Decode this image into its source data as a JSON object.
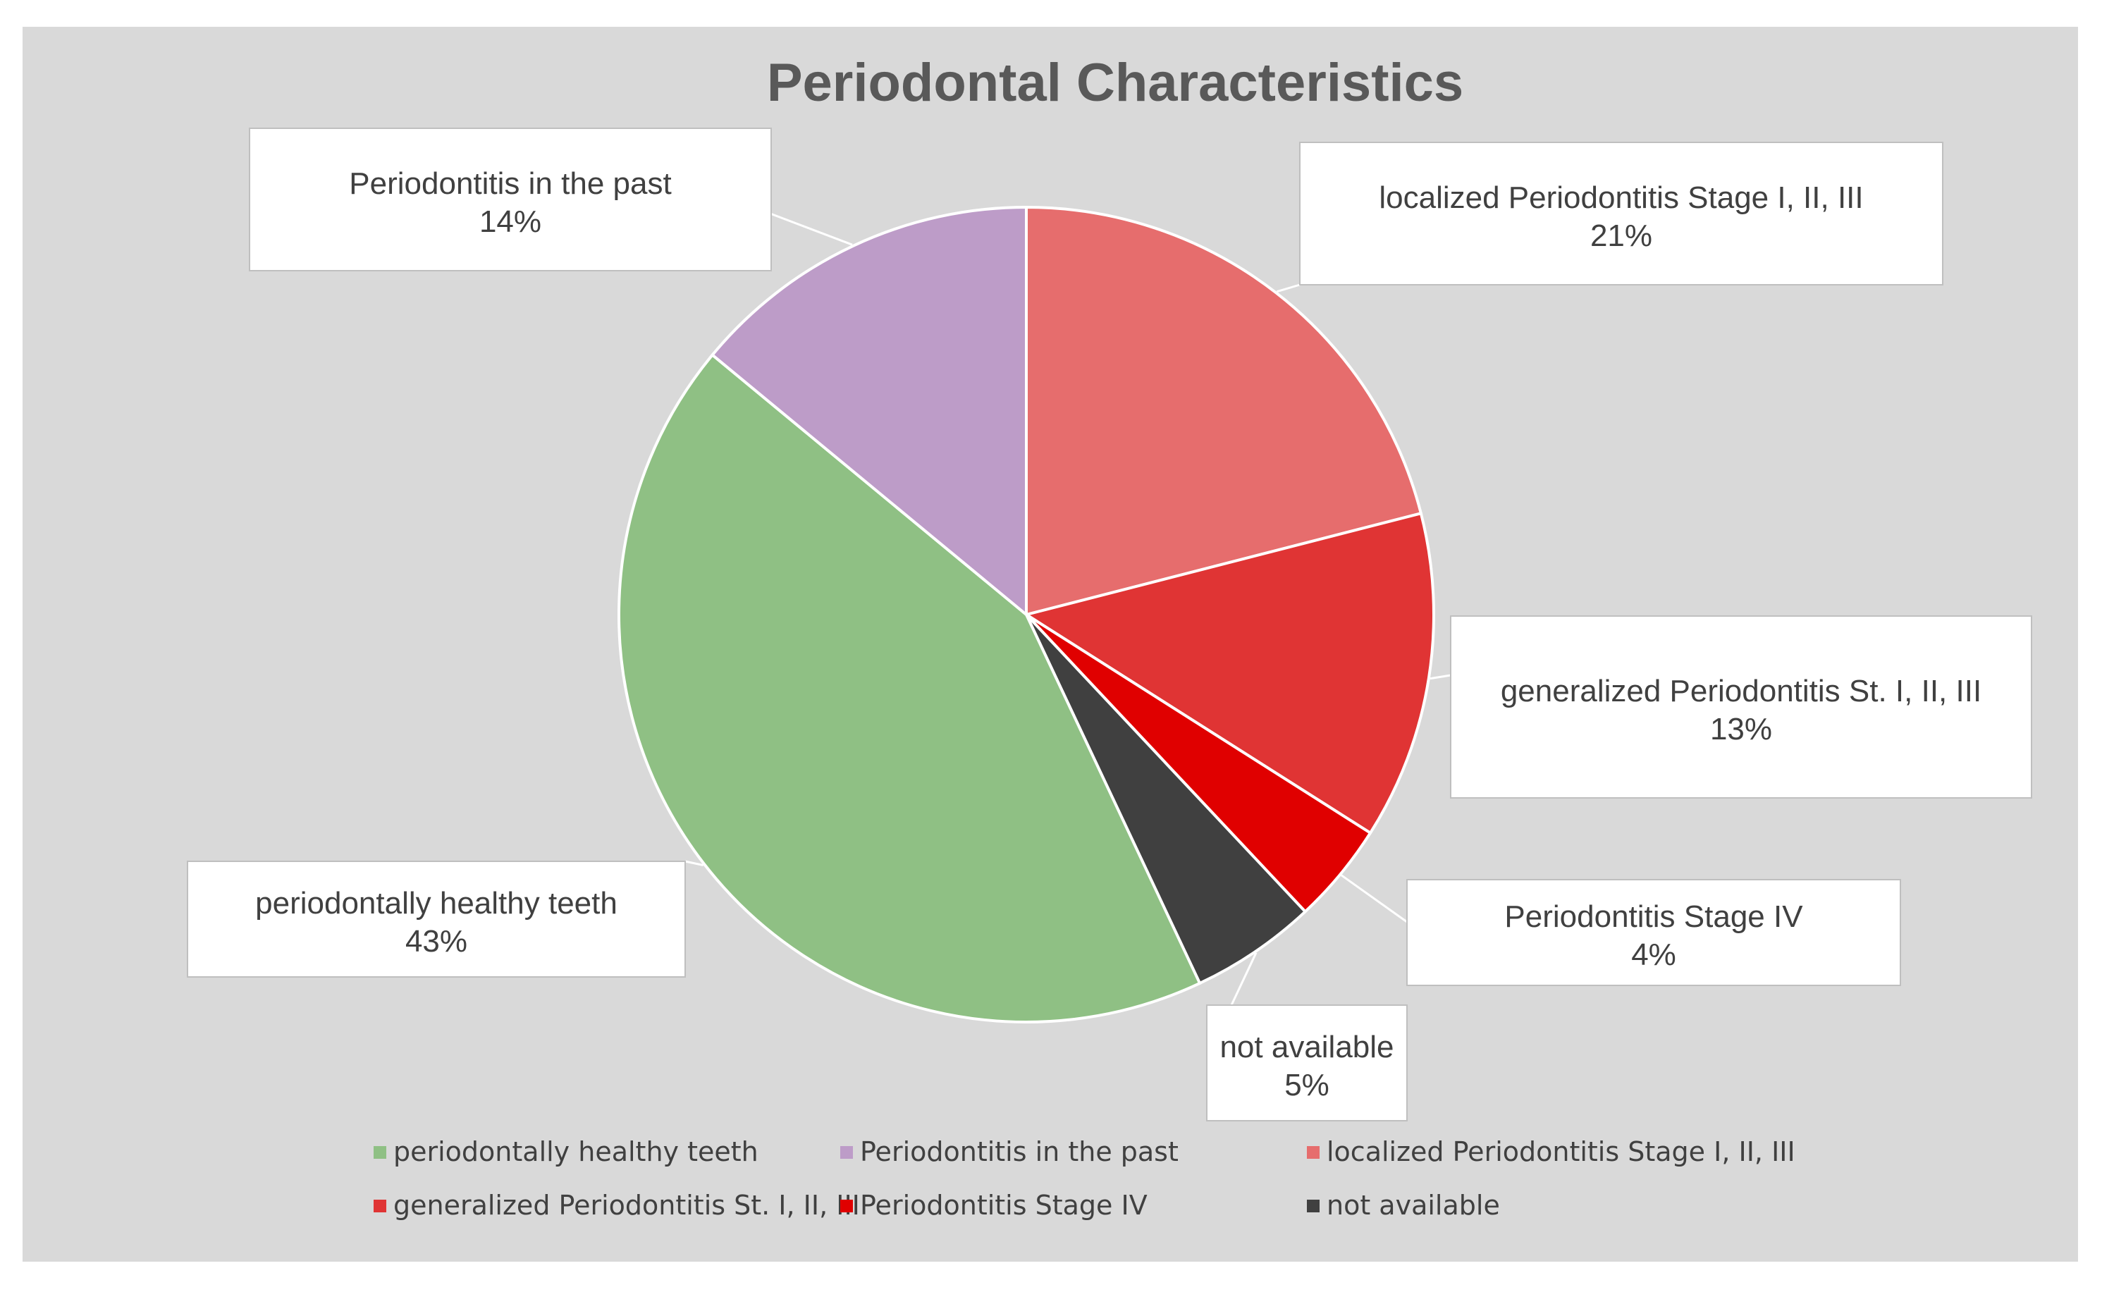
{
  "chart_data": {
    "type": "pie",
    "title": "Periodontal Characteristics",
    "slices": [
      {
        "label": "periodontally healthy teeth",
        "value": 43,
        "value_label": "43%",
        "color": "#8fc084"
      },
      {
        "label": "Periodontitis in the past",
        "value": 14,
        "value_label": "14%",
        "color": "#bd9cc8"
      },
      {
        "label": "localized Periodontitis Stage I, II, III",
        "value": 21,
        "value_label": "21%",
        "color": "#e66d6d"
      },
      {
        "label": "generalized Periodontitis St. I, II, III",
        "value": 13,
        "value_label": "13%",
        "color": "#e03434"
      },
      {
        "label": "Periodontitis Stage IV",
        "value": 4,
        "value_label": "4%",
        "color": "#e00000"
      },
      {
        "label": "not available",
        "value": 5,
        "value_label": "5%",
        "color": "#404040"
      }
    ],
    "legend_position": "bottom"
  }
}
